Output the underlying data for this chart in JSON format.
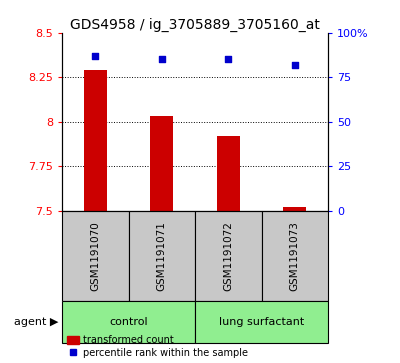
{
  "title": "GDS4958 / ig_3705889_3705160_at",
  "samples": [
    "GSM1191070",
    "GSM1191071",
    "GSM1191072",
    "GSM1191073"
  ],
  "red_values": [
    8.29,
    8.03,
    7.92,
    7.52
  ],
  "blue_values": [
    87,
    85,
    85,
    82
  ],
  "ylim_left": [
    7.5,
    8.5
  ],
  "ylim_right": [
    0,
    100
  ],
  "yticks_left": [
    7.5,
    7.75,
    8.0,
    8.25,
    8.5
  ],
  "yticks_right": [
    0,
    25,
    50,
    75,
    100
  ],
  "ytick_labels_left": [
    "7.5",
    "7.75",
    "8",
    "8.25",
    "8.5"
  ],
  "ytick_labels_right": [
    "0",
    "25",
    "50",
    "75",
    "100%"
  ],
  "agent_label": "agent",
  "legend_red": "transformed count",
  "legend_blue": "percentile rank within the sample",
  "bar_color": "#CC0000",
  "dot_color": "#0000CC",
  "sample_box_color": "#C8C8C8",
  "group_row_color": "#90EE90",
  "title_fontsize": 10,
  "tick_fontsize": 8,
  "sample_label_fontsize": 7.5,
  "group_label_fontsize": 8,
  "legend_fontsize": 7
}
